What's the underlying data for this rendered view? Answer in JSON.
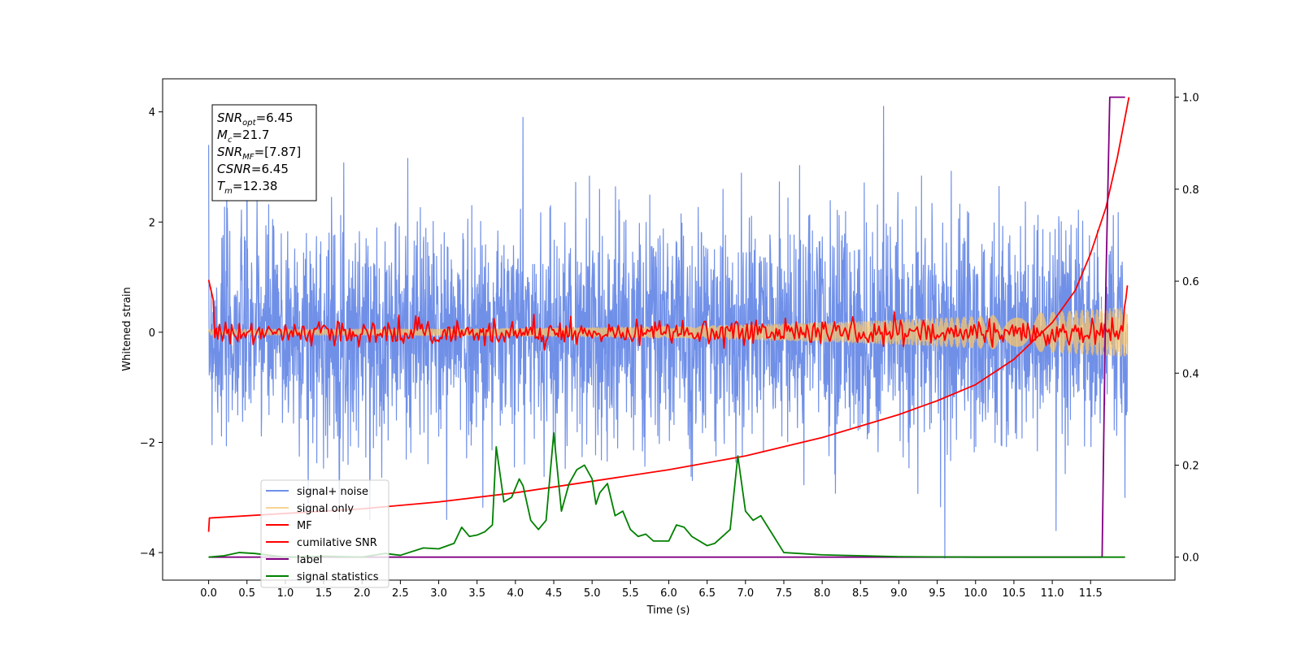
{
  "chart_data": {
    "type": "line",
    "xlabel": "Time (s)",
    "ylabel": "Whitened strain",
    "xlim": [
      -0.6,
      12.6
    ],
    "ylim_left": [
      -4.5,
      4.6
    ],
    "ylim_right": [
      -0.05,
      1.04
    ],
    "x_ticks": [
      "0.0",
      "0.5",
      "1.0",
      "1.5",
      "2.0",
      "2.5",
      "3.0",
      "3.5",
      "4.0",
      "4.5",
      "5.0",
      "5.5",
      "6.0",
      "6.5",
      "7.0",
      "7.5",
      "8.0",
      "8.5",
      "9.0",
      "9.5",
      "10.0",
      "10.5",
      "11.0",
      "11.5"
    ],
    "y_ticks_left": [
      "4",
      "2",
      "0",
      "−2",
      "−4"
    ],
    "y_ticks_right": [
      "1.0",
      "0.8",
      "0.6",
      "0.4",
      "0.2",
      "0.0"
    ],
    "annotation": [
      {
        "base": "SNR",
        "sub": "opt",
        "value": "=6.45"
      },
      {
        "base": "M",
        "sub": "c",
        "value": "=21.7"
      },
      {
        "base": "SNR",
        "sub": "MF",
        "value": "=[7.87]"
      },
      {
        "base": "CSNR",
        "sub": "",
        "value": "=6.45"
      },
      {
        "base": "T",
        "sub": "m",
        "value": "=12.38"
      }
    ],
    "legend_position": "lower-left",
    "series": [
      {
        "name": "signal+ noise",
        "color": "#7090e8",
        "axis": "left",
        "kind": "noise",
        "amplitude_sigma": 1.0,
        "peaks": [
          4.1,
          -4.1
        ]
      },
      {
        "name": "signal only",
        "color": "#f5c46e",
        "axis": "left",
        "kind": "chirp",
        "amplitude_start": 0.05,
        "amplitude_end": 0.45
      },
      {
        "name": "MF",
        "color": "#ff0000",
        "axis": "left",
        "kind": "matched-filter",
        "start_value": 0.95,
        "end_value": 0.85
      },
      {
        "name": "cumilative SNR",
        "color": "#ff0000",
        "axis": "right",
        "points": [
          [
            0.0,
            0.055
          ],
          [
            0.01,
            0.085
          ],
          [
            1.0,
            0.095
          ],
          [
            2.0,
            0.105
          ],
          [
            3.0,
            0.12
          ],
          [
            4.0,
            0.14
          ],
          [
            5.0,
            0.165
          ],
          [
            6.0,
            0.19
          ],
          [
            7.0,
            0.22
          ],
          [
            8.0,
            0.26
          ],
          [
            9.0,
            0.31
          ],
          [
            9.5,
            0.34
          ],
          [
            10.0,
            0.375
          ],
          [
            10.5,
            0.43
          ],
          [
            11.0,
            0.51
          ],
          [
            11.3,
            0.58
          ],
          [
            11.5,
            0.66
          ],
          [
            11.7,
            0.76
          ],
          [
            11.85,
            0.87
          ],
          [
            12.0,
            1.0
          ]
        ]
      },
      {
        "name": "label",
        "color": "#800080",
        "axis": "right",
        "points": [
          [
            0.0,
            0.0
          ],
          [
            11.65,
            0.0
          ],
          [
            11.7,
            0.6
          ],
          [
            11.75,
            1.0
          ],
          [
            11.95,
            1.0
          ]
        ]
      },
      {
        "name": "signal statistics",
        "color": "#008000",
        "axis": "right",
        "points": [
          [
            0.0,
            0.0
          ],
          [
            0.2,
            0.003
          ],
          [
            0.4,
            0.01
          ],
          [
            0.6,
            0.008
          ],
          [
            0.8,
            0.004
          ],
          [
            1.0,
            0.0
          ],
          [
            1.5,
            0.002
          ],
          [
            2.0,
            0.0
          ],
          [
            2.3,
            0.008
          ],
          [
            2.5,
            0.004
          ],
          [
            2.8,
            0.02
          ],
          [
            3.0,
            0.018
          ],
          [
            3.2,
            0.03
          ],
          [
            3.3,
            0.065
          ],
          [
            3.4,
            0.045
          ],
          [
            3.5,
            0.048
          ],
          [
            3.6,
            0.055
          ],
          [
            3.7,
            0.07
          ],
          [
            3.75,
            0.24
          ],
          [
            3.85,
            0.12
          ],
          [
            3.95,
            0.13
          ],
          [
            4.05,
            0.17
          ],
          [
            4.1,
            0.155
          ],
          [
            4.2,
            0.08
          ],
          [
            4.3,
            0.06
          ],
          [
            4.4,
            0.08
          ],
          [
            4.5,
            0.27
          ],
          [
            4.6,
            0.1
          ],
          [
            4.7,
            0.16
          ],
          [
            4.8,
            0.19
          ],
          [
            4.9,
            0.2
          ],
          [
            5.0,
            0.17
          ],
          [
            5.05,
            0.115
          ],
          [
            5.1,
            0.14
          ],
          [
            5.2,
            0.16
          ],
          [
            5.3,
            0.09
          ],
          [
            5.4,
            0.1
          ],
          [
            5.5,
            0.06
          ],
          [
            5.6,
            0.045
          ],
          [
            5.7,
            0.05
          ],
          [
            5.8,
            0.035
          ],
          [
            6.0,
            0.035
          ],
          [
            6.1,
            0.07
          ],
          [
            6.2,
            0.065
          ],
          [
            6.3,
            0.045
          ],
          [
            6.5,
            0.025
          ],
          [
            6.6,
            0.03
          ],
          [
            6.8,
            0.06
          ],
          [
            6.9,
            0.22
          ],
          [
            7.0,
            0.1
          ],
          [
            7.1,
            0.08
          ],
          [
            7.2,
            0.09
          ],
          [
            7.35,
            0.05
          ],
          [
            7.5,
            0.01
          ],
          [
            8.0,
            0.005
          ],
          [
            9.0,
            0.001
          ],
          [
            10.0,
            0.0
          ],
          [
            11.0,
            0.0
          ],
          [
            11.95,
            0.0
          ]
        ]
      }
    ]
  }
}
